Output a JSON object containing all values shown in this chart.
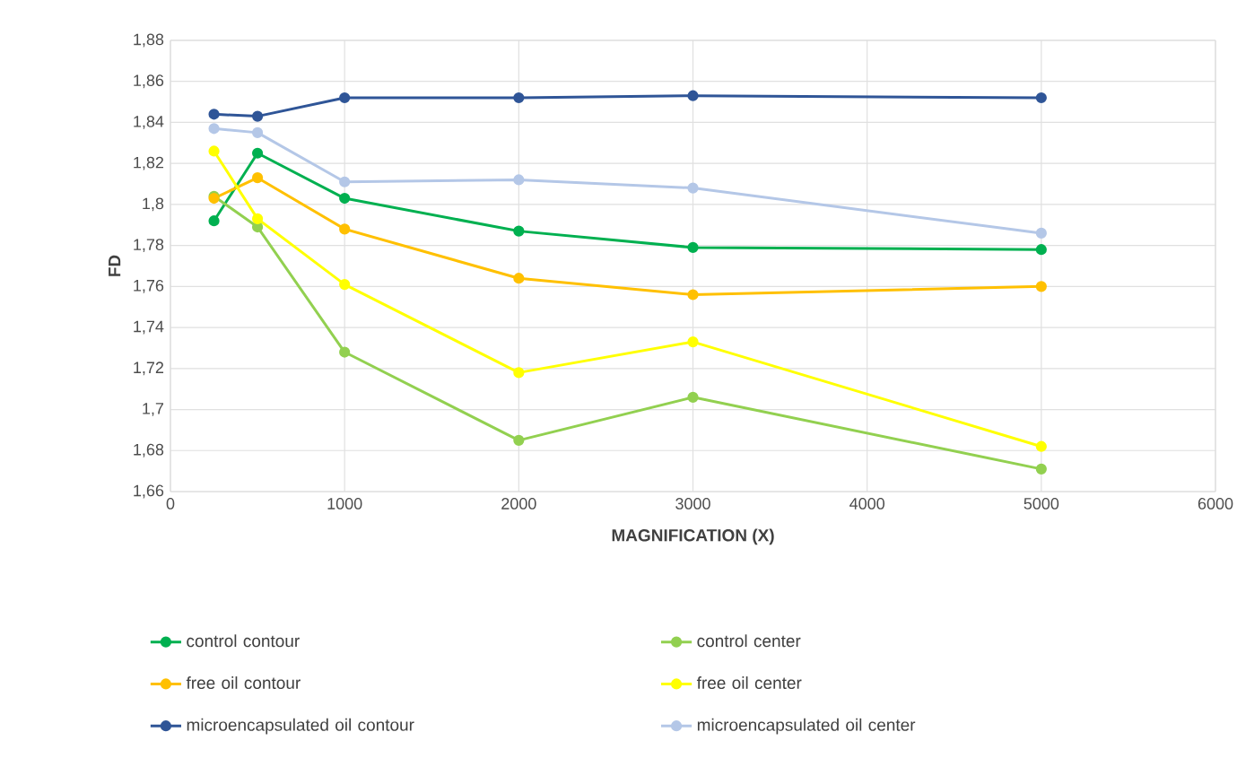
{
  "chart_data": {
    "type": "line",
    "xlabel": "MAGNIFICATION (X)",
    "ylabel": "FD",
    "x": [
      250,
      500,
      1000,
      2000,
      3000,
      5000
    ],
    "xlim": [
      0,
      6000
    ],
    "xticks": [
      0,
      1000,
      2000,
      3000,
      4000,
      5000,
      6000
    ],
    "ylim": [
      1.66,
      1.88
    ],
    "yticks": [
      {
        "value": 1.66,
        "label": "1,66"
      },
      {
        "value": 1.68,
        "label": "1,68"
      },
      {
        "value": 1.7,
        "label": "1,7"
      },
      {
        "value": 1.72,
        "label": "1,72"
      },
      {
        "value": 1.74,
        "label": "1,74"
      },
      {
        "value": 1.76,
        "label": "1,76"
      },
      {
        "value": 1.78,
        "label": "1,78"
      },
      {
        "value": 1.8,
        "label": "1,8"
      },
      {
        "value": 1.82,
        "label": "1,82"
      },
      {
        "value": 1.84,
        "label": "1,84"
      },
      {
        "value": 1.86,
        "label": "1,86"
      },
      {
        "value": 1.88,
        "label": "1,88"
      }
    ],
    "grid": true,
    "legend": "bottom",
    "marker": "circle",
    "line_style": "solid",
    "series": [
      {
        "name": "control contour",
        "color": "#00b050",
        "values": [
          1.792,
          1.825,
          1.803,
          1.787,
          1.779,
          1.778
        ]
      },
      {
        "name": "control center",
        "color": "#92d050",
        "values": [
          1.804,
          1.789,
          1.728,
          1.685,
          1.706,
          1.671
        ]
      },
      {
        "name": "free oil contour",
        "color": "#ffc000",
        "values": [
          1.803,
          1.813,
          1.788,
          1.764,
          1.756,
          1.76
        ]
      },
      {
        "name": "free oil center",
        "color": "#ffff00",
        "values": [
          1.826,
          1.793,
          1.761,
          1.718,
          1.733,
          1.682
        ]
      },
      {
        "name": "microencapsulated oil contour",
        "color": "#2f5597",
        "values": [
          1.844,
          1.843,
          1.852,
          1.852,
          1.853,
          1.852
        ]
      },
      {
        "name": "microencapsulated oil center",
        "color": "#b4c7e7",
        "values": [
          1.837,
          1.835,
          1.811,
          1.812,
          1.808,
          1.786
        ]
      }
    ]
  }
}
